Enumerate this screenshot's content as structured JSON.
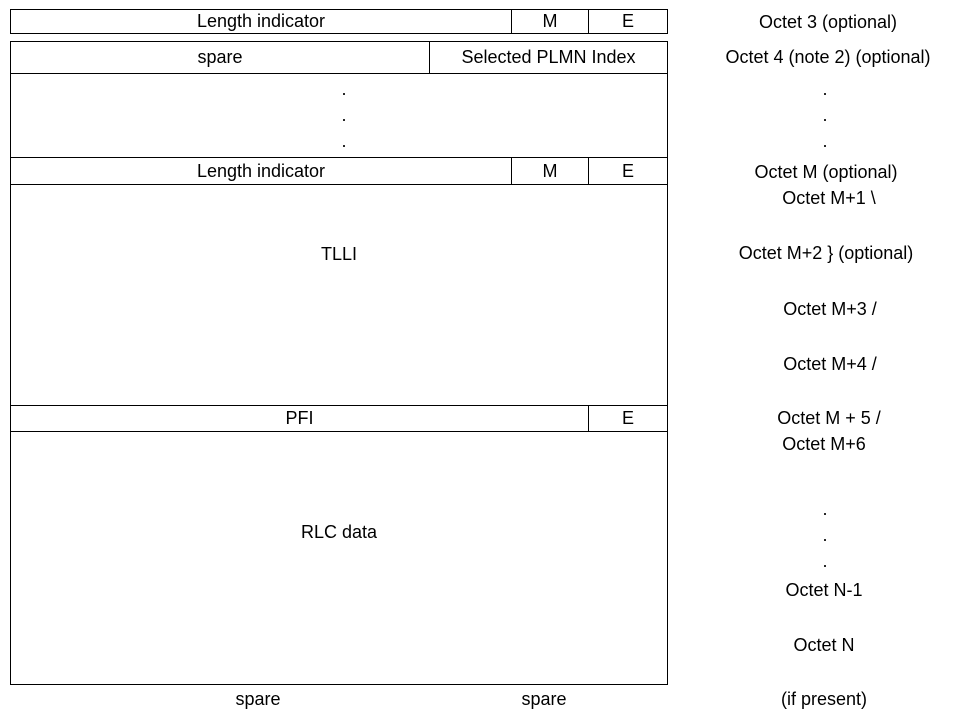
{
  "diagram": {
    "row1": {
      "length_indicator": "Length indicator",
      "m": "M",
      "e": "E"
    },
    "row2": {
      "spare": "spare",
      "selected_plmn_index": "Selected PLMN Index"
    },
    "ellipsis": ".",
    "row4": {
      "length_indicator": "Length indicator",
      "m": "M",
      "e": "E"
    },
    "tlli": "TLLI",
    "pfi_row": {
      "pfi": "PFI",
      "e": "E"
    },
    "rlc_data": "RLC data",
    "bottom_labels": {
      "spare_left": "spare",
      "spare_right": "spare",
      "if_present": "(if present)"
    },
    "octets": {
      "octet3": "Octet 3 (optional)",
      "octet4": "Octet 4 (note 2)  (optional)",
      "dot": ".",
      "octetM": "Octet M (optional)",
      "octetM1": "Octet M+1 \\",
      "octetM2": "Octet M+2 } (optional)",
      "octetM3": "Octet M+3 /",
      "octetM4": "Octet M+4 /",
      "octetM5": "Octet M + 5 /",
      "octetM6": "Octet M+6",
      "octetN1": "Octet N-1",
      "octetN": "Octet N"
    }
  }
}
